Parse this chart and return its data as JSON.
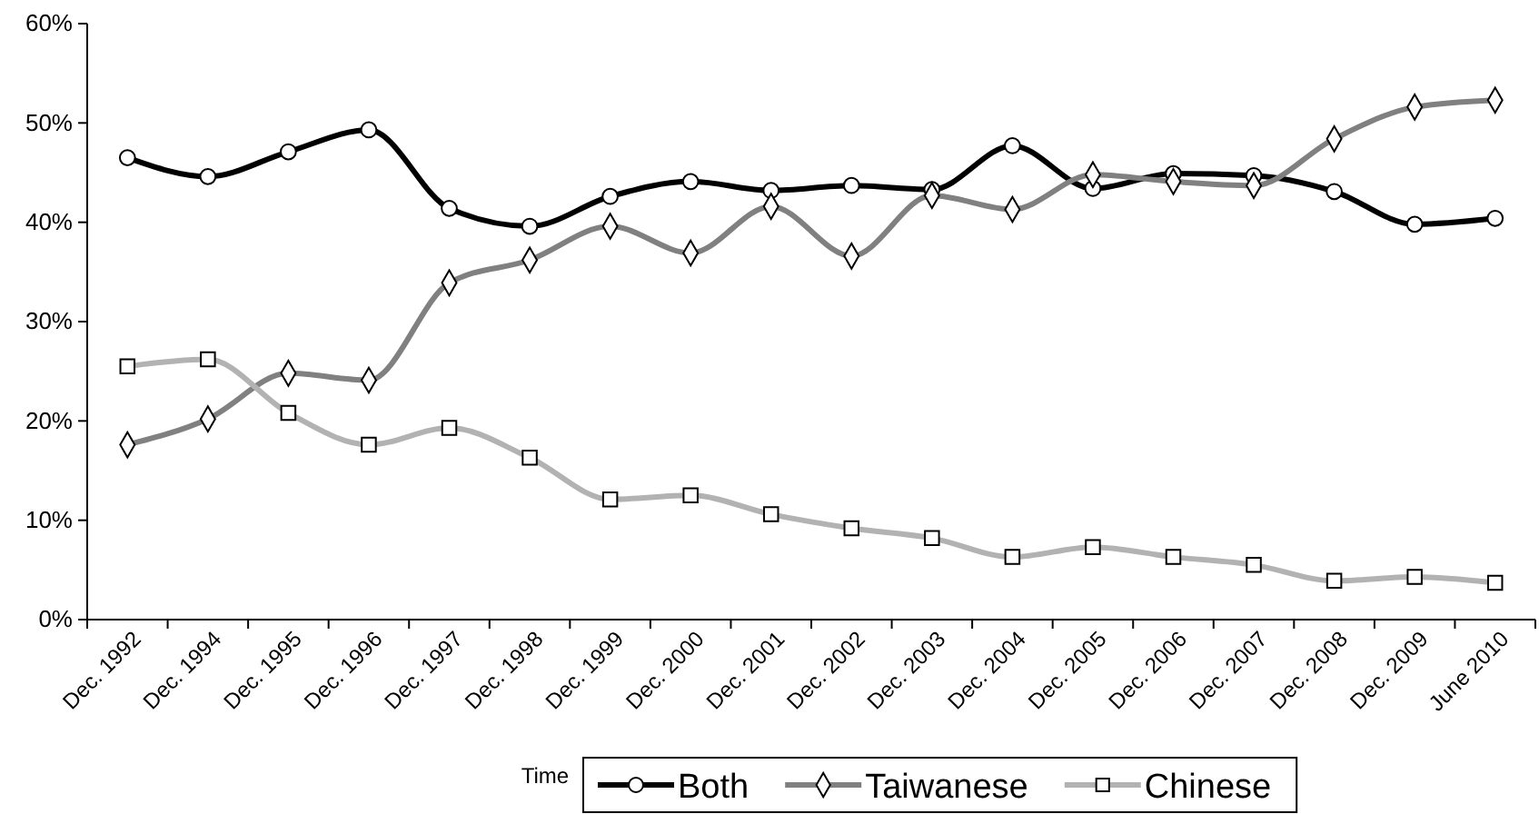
{
  "chart_data": {
    "type": "line",
    "xlabel": "Time",
    "categories": [
      "Dec. 1992",
      "Dec. 1994",
      "Dec. 1995",
      "Dec. 1996",
      "Dec. 1997",
      "Dec. 1998",
      "Dec. 1999",
      "Dec. 2000",
      "Dec. 2001",
      "Dec. 2002",
      "Dec. 2003",
      "Dec. 2004",
      "Dec. 2005",
      "Dec. 2006",
      "Dec. 2007",
      "Dec. 2008",
      "Dec. 2009",
      "June 2010"
    ],
    "series": [
      {
        "name": "Both",
        "color": "#000000",
        "marker": "circle",
        "values": [
          46.5,
          44.6,
          47.1,
          49.3,
          41.4,
          39.6,
          42.6,
          44.1,
          43.2,
          43.7,
          43.3,
          47.7,
          43.4,
          44.9,
          44.7,
          43.1,
          39.8,
          40.4
        ]
      },
      {
        "name": "Taiwanese",
        "color": "#808080",
        "marker": "diamond",
        "values": [
          17.6,
          20.2,
          24.8,
          24.1,
          33.9,
          36.2,
          39.6,
          36.9,
          41.6,
          36.6,
          42.7,
          41.3,
          44.8,
          44.1,
          43.7,
          48.4,
          51.6,
          52.3
        ]
      },
      {
        "name": "Chinese",
        "color": "#b2b2b2",
        "marker": "square",
        "values": [
          25.5,
          26.2,
          20.8,
          17.6,
          19.3,
          16.3,
          12.1,
          12.5,
          10.6,
          9.2,
          8.2,
          6.3,
          7.3,
          6.3,
          5.5,
          3.9,
          4.3,
          3.7
        ]
      }
    ],
    "ylim": [
      0,
      60
    ],
    "yticks": [
      {
        "value": 0,
        "label": "0%"
      },
      {
        "value": 10,
        "label": "10%"
      },
      {
        "value": 20,
        "label": "20%"
      },
      {
        "value": 30,
        "label": "30%"
      },
      {
        "value": 40,
        "label": "40%"
      },
      {
        "value": 50,
        "label": "50%"
      },
      {
        "value": 60,
        "label": "60%"
      }
    ],
    "grid": false,
    "legend": "bottom",
    "line_style": "solid"
  }
}
